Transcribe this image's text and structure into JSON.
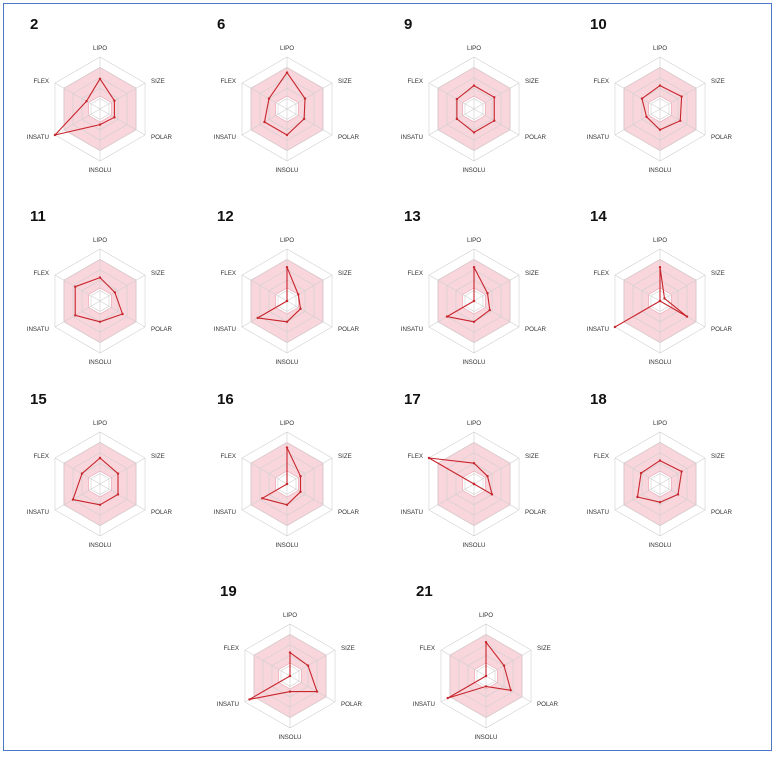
{
  "figure": {
    "border_color": "#4a78c2"
  },
  "chart_data": {
    "type": "radar",
    "axes": [
      "LIPO",
      "SIZE",
      "POLAR",
      "INSOLU",
      "INSATU",
      "FLEX"
    ],
    "optimal_range": {
      "lower": [
        0.25,
        0.25,
        0.25,
        0.25,
        0.25,
        0.25
      ],
      "upper": [
        0.8,
        0.8,
        0.8,
        0.8,
        0.8,
        0.8
      ]
    },
    "range_color": "#f5c8d0",
    "line_color": "#c8252c",
    "grid_color": "#cfcfcf",
    "rlim": [
      0,
      1
    ],
    "panels": [
      {
        "id": "2",
        "axis_labels": [
          "LIPO",
          "SIZE",
          "POLAR",
          "INSOLU",
          "INSATU",
          "FLEX"
        ],
        "values": [
          0.58,
          0.32,
          0.32,
          0.3,
          1.0,
          0.3
        ]
      },
      {
        "id": "6",
        "axis_labels": [
          "LIPO",
          "SIZE",
          "POLAR",
          "INSOLU",
          "INSATU",
          "FLEX"
        ],
        "values": [
          0.7,
          0.4,
          0.38,
          0.5,
          0.5,
          0.4
        ]
      },
      {
        "id": "9",
        "axis_labels": [
          "LIPO",
          "SIZE",
          "POLAR",
          "INSOLU",
          "INSATU",
          "FLEX"
        ],
        "values": [
          0.45,
          0.45,
          0.45,
          0.45,
          0.38,
          0.38
        ]
      },
      {
        "id": "10",
        "axis_labels": [
          "LIPO",
          "SIZE",
          "POLAR",
          "INSOLU",
          "INSATU",
          "FLEX"
        ],
        "values": [
          0.45,
          0.48,
          0.45,
          0.4,
          0.3,
          0.4
        ]
      },
      {
        "id": "11",
        "axis_labels": [
          "LIPO",
          "SIZE",
          "POLAR",
          "INSOLU",
          "INSATU",
          "FLEX"
        ],
        "values": [
          0.45,
          0.33,
          0.5,
          0.4,
          0.55,
          0.55
        ]
      },
      {
        "id": "12",
        "axis_labels": [
          "LIPO",
          "SIZE",
          "POLAR",
          "INSOLU",
          "INSATU",
          "FLEX"
        ],
        "values": [
          0.65,
          0.25,
          0.3,
          0.4,
          0.65,
          0.0
        ]
      },
      {
        "id": "13",
        "axis_labels": [
          "LIPO",
          "SIZE",
          "POLAR",
          "INSOLU",
          "INSATU",
          "FLEX"
        ],
        "values": [
          0.65,
          0.3,
          0.35,
          0.4,
          0.6,
          0.0
        ]
      },
      {
        "id": "14",
        "axis_labels": [
          "LIPO",
          "SIZE",
          "POLAR",
          "INSOLU",
          "INSATU",
          "FLEX"
        ],
        "values": [
          0.65,
          0.1,
          0.6,
          0.0,
          1.0,
          0.0
        ]
      },
      {
        "id": "15",
        "axis_labels": [
          "LIPO",
          "SIZE",
          "POLAR",
          "INSOLU",
          "INSATU",
          "FLEX"
        ],
        "values": [
          0.5,
          0.4,
          0.4,
          0.4,
          0.6,
          0.4
        ]
      },
      {
        "id": "16",
        "axis_labels": [
          "LIPO",
          "SIZE",
          "POLAR",
          "INSOLU",
          "INSATU",
          "FLEX"
        ],
        "values": [
          0.7,
          0.3,
          0.3,
          0.4,
          0.55,
          0.0
        ]
      },
      {
        "id": "17",
        "axis_labels": [
          "LIPO",
          "SIZE",
          "POLAR",
          "INSOLU",
          "INSATU",
          "FLEX"
        ],
        "values": [
          0.4,
          0.3,
          0.4,
          0.0,
          0.0,
          1.0
        ]
      },
      {
        "id": "18",
        "axis_labels": [
          "LIPO",
          "SIZE",
          "POLAR",
          "INSOLU",
          "INSATU",
          "FLEX"
        ],
        "values": [
          0.45,
          0.48,
          0.4,
          0.35,
          0.5,
          0.42
        ]
      },
      {
        "id": "19",
        "axis_labels": [
          "LIPO",
          "SIZE",
          "POLAR",
          "INSOLU",
          "INSATU",
          "FLEX"
        ],
        "values": [
          0.45,
          0.4,
          0.6,
          0.3,
          0.9,
          0.0
        ]
      },
      {
        "id": "21",
        "axis_labels": [
          "LIPO",
          "SIZE",
          "POLAR",
          "INSOLU",
          "INSATU",
          "FLEX"
        ],
        "values": [
          0.65,
          0.4,
          0.55,
          0.2,
          0.85,
          0.0
        ]
      }
    ]
  }
}
